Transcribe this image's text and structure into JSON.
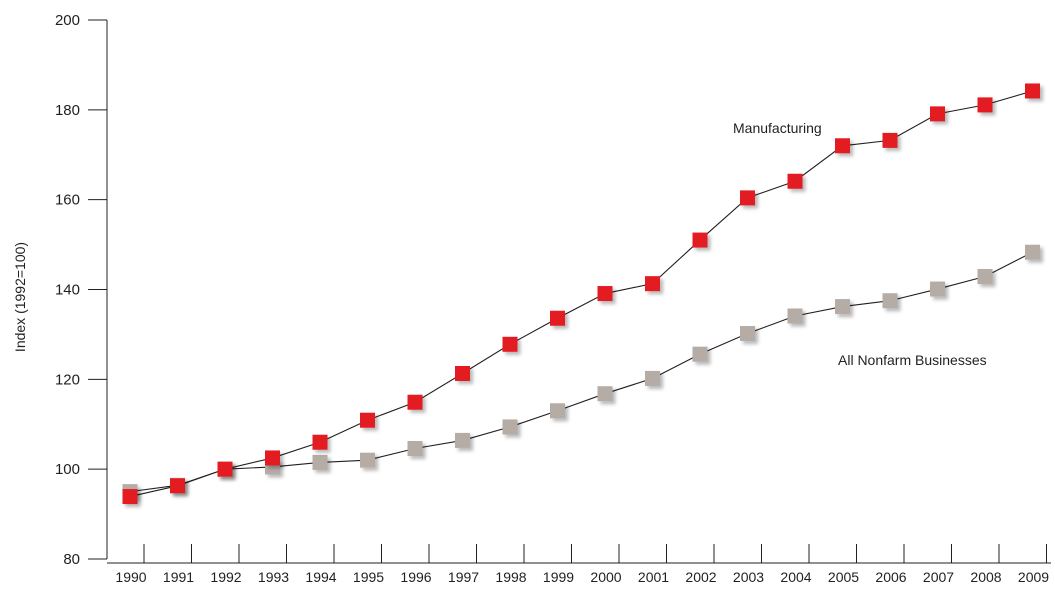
{
  "chart_data": {
    "type": "line",
    "title": "",
    "xlabel": "",
    "ylabel": "Index (1992=100)",
    "ylim": [
      80,
      200
    ],
    "yticks": [
      80,
      100,
      120,
      140,
      160,
      180,
      200
    ],
    "x": [
      "1990",
      "1991",
      "1992",
      "1993",
      "1994",
      "1995",
      "1996",
      "1997",
      "1998",
      "1999",
      "2000",
      "2001",
      "2002",
      "2003",
      "2004",
      "2005",
      "2006",
      "2007",
      "2008",
      "2009"
    ],
    "grid": false,
    "legend": "direct labels on the lines",
    "series": [
      {
        "name": "Manufacturing",
        "color": "#e31b23",
        "marker": "square",
        "values": [
          93.9,
          96.3,
          100.0,
          102.5,
          106.0,
          110.9,
          114.9,
          121.3,
          127.8,
          133.6,
          139.1,
          141.3,
          151.0,
          160.4,
          164.1,
          172.0,
          173.2,
          179.1,
          181.1,
          184.2
        ]
      },
      {
        "name": "All Nonfarm Businesses",
        "color": "#b5aca6",
        "marker": "square",
        "values": [
          95.0,
          96.4,
          100.0,
          100.5,
          101.5,
          102.0,
          104.6,
          106.4,
          109.4,
          113.0,
          116.8,
          120.2,
          125.6,
          130.2,
          134.1,
          136.2,
          137.5,
          140.1,
          142.9,
          148.3
        ]
      }
    ]
  }
}
